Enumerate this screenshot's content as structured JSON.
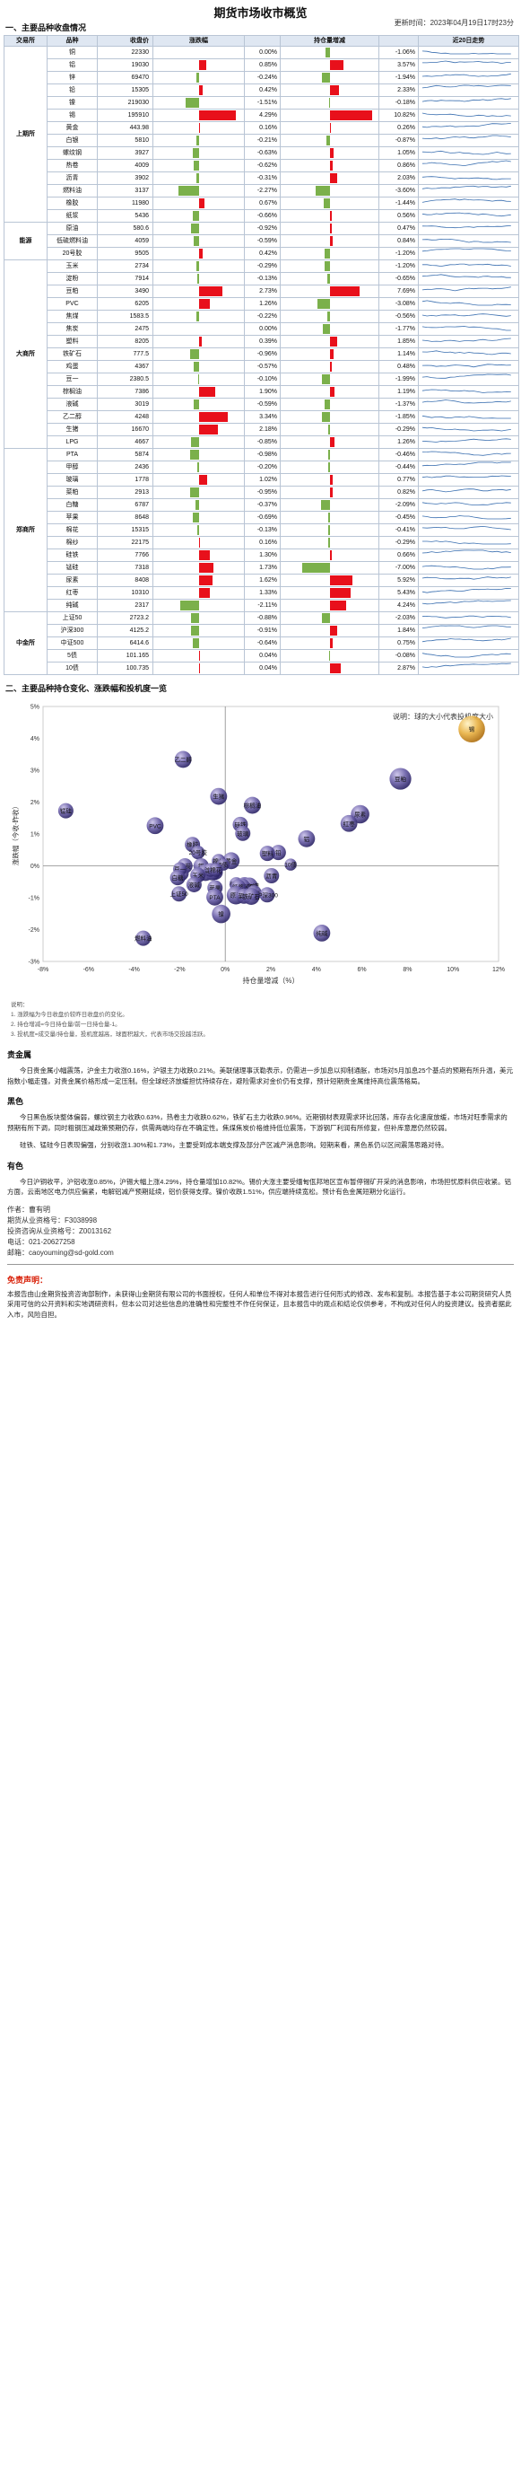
{
  "title": "期货市场收市概览",
  "update_time": "更新时间：2023年04月19日17时23分",
  "section1_title": "一、主要品种收盘情况",
  "table": {
    "headers": [
      "交易所",
      "品种",
      "收盘价",
      "涨跌幅",
      "",
      "持仓量增减",
      "",
      "近20日走势"
    ],
    "groups": [
      {
        "exchange": "上期所",
        "rows": [
          {
            "name": "铜",
            "price": "22330",
            "pct": 0.0,
            "pct_text": "0.00%",
            "oi": -1.06,
            "oi_text": "-1.06%"
          },
          {
            "name": "铝",
            "price": "19030",
            "pct": 0.85,
            "pct_text": "0.85%",
            "oi": 3.57,
            "oi_text": "3.57%"
          },
          {
            "name": "锌",
            "price": "69470",
            "pct": -0.24,
            "pct_text": "-0.24%",
            "oi": -1.94,
            "oi_text": "-1.94%"
          },
          {
            "name": "铅",
            "price": "15305",
            "pct": 0.42,
            "pct_text": "0.42%",
            "oi": 2.33,
            "oi_text": "2.33%"
          },
          {
            "name": "镍",
            "price": "219030",
            "pct": -1.51,
            "pct_text": "-1.51%",
            "oi": -0.18,
            "oi_text": "-0.18%"
          },
          {
            "name": "锡",
            "price": "195910",
            "pct": 4.29,
            "pct_text": "4.29%",
            "oi": 10.82,
            "oi_text": "10.82%"
          },
          {
            "name": "黄金",
            "price": "443.98",
            "pct": 0.16,
            "pct_text": "0.16%",
            "oi": 0.26,
            "oi_text": "0.26%"
          },
          {
            "name": "白银",
            "price": "5810",
            "pct": -0.21,
            "pct_text": "-0.21%",
            "oi": -0.87,
            "oi_text": "-0.87%"
          },
          {
            "name": "螺纹钢",
            "price": "3927",
            "pct": -0.63,
            "pct_text": "-0.63%",
            "oi": 1.05,
            "oi_text": "1.05%"
          },
          {
            "name": "热卷",
            "price": "4009",
            "pct": -0.62,
            "pct_text": "-0.62%",
            "oi": 0.86,
            "oi_text": "0.86%"
          },
          {
            "name": "沥青",
            "price": "3902",
            "pct": -0.31,
            "pct_text": "-0.31%",
            "oi": 2.03,
            "oi_text": "2.03%"
          },
          {
            "name": "燃料油",
            "price": "3137",
            "pct": -2.27,
            "pct_text": "-2.27%",
            "oi": -3.6,
            "oi_text": "-3.60%"
          },
          {
            "name": "橡胶",
            "price": "11980",
            "pct": 0.67,
            "pct_text": "0.67%",
            "oi": -1.44,
            "oi_text": "-1.44%"
          },
          {
            "name": "纸浆",
            "price": "5436",
            "pct": -0.66,
            "pct_text": "-0.66%",
            "oi": 0.56,
            "oi_text": "0.56%"
          }
        ]
      },
      {
        "exchange": "能源",
        "rows": [
          {
            "name": "原油",
            "price": "580.6",
            "pct": -0.92,
            "pct_text": "-0.92%",
            "oi": 0.47,
            "oi_text": "0.47%"
          },
          {
            "name": "低硫燃料油",
            "price": "4059",
            "pct": -0.59,
            "pct_text": "-0.59%",
            "oi": 0.84,
            "oi_text": "0.84%"
          },
          {
            "name": "20号胶",
            "price": "9505",
            "pct": 0.42,
            "pct_text": "0.42%",
            "oi": -1.2,
            "oi_text": "-1.20%"
          }
        ]
      },
      {
        "exchange": "大商所",
        "rows": [
          {
            "name": "玉米",
            "price": "2734",
            "pct": -0.29,
            "pct_text": "-0.29%",
            "oi": -1.2,
            "oi_text": "-1.20%"
          },
          {
            "name": "淀粉",
            "price": "7914",
            "pct": -0.13,
            "pct_text": "-0.13%",
            "oi": -0.65,
            "oi_text": "-0.65%"
          },
          {
            "name": "豆粕",
            "price": "3490",
            "pct": 2.73,
            "pct_text": "2.73%",
            "oi": 7.69,
            "oi_text": "7.69%"
          },
          {
            "name": "PVC",
            "price": "6205",
            "pct": 1.26,
            "pct_text": "1.26%",
            "oi": -3.08,
            "oi_text": "-3.08%"
          },
          {
            "name": "焦煤",
            "price": "1583.5",
            "pct": -0.22,
            "pct_text": "-0.22%",
            "oi": -0.56,
            "oi_text": "-0.56%"
          },
          {
            "name": "焦炭",
            "price": "2475",
            "pct": 0.0,
            "pct_text": "0.00%",
            "oi": -1.77,
            "oi_text": "-1.77%"
          },
          {
            "name": "塑料",
            "price": "8205",
            "pct": 0.39,
            "pct_text": "0.39%",
            "oi": 1.85,
            "oi_text": "1.85%"
          },
          {
            "name": "铁矿石",
            "price": "777.5",
            "pct": -0.96,
            "pct_text": "-0.96%",
            "oi": 1.14,
            "oi_text": "1.14%"
          },
          {
            "name": "鸡蛋",
            "price": "4367",
            "pct": -0.57,
            "pct_text": "-0.57%",
            "oi": 0.48,
            "oi_text": "0.48%"
          },
          {
            "name": "豆一",
            "price": "2380.5",
            "pct": -0.1,
            "pct_text": "-0.10%",
            "oi": -1.99,
            "oi_text": "-1.99%"
          },
          {
            "name": "棕榈油",
            "price": "7386",
            "pct": 1.9,
            "pct_text": "1.90%",
            "oi": 1.19,
            "oi_text": "1.19%"
          },
          {
            "name": "液碱",
            "price": "3019",
            "pct": -0.59,
            "pct_text": "-0.59%",
            "oi": -1.37,
            "oi_text": "-1.37%"
          },
          {
            "name": "乙二醇",
            "price": "4248",
            "pct": 3.34,
            "pct_text": "3.34%",
            "oi": -1.85,
            "oi_text": "-1.85%"
          },
          {
            "name": "生猪",
            "price": "16670",
            "pct": 2.18,
            "pct_text": "2.18%",
            "oi": -0.29,
            "oi_text": "-0.29%"
          },
          {
            "name": "LPG",
            "price": "4667",
            "pct": -0.85,
            "pct_text": "-0.85%",
            "oi": 1.26,
            "oi_text": "1.26%"
          }
        ]
      },
      {
        "exchange": "郑商所",
        "rows": [
          {
            "name": "PTA",
            "price": "5874",
            "pct": -0.98,
            "pct_text": "-0.98%",
            "oi": -0.46,
            "oi_text": "-0.46%"
          },
          {
            "name": "甲醇",
            "price": "2436",
            "pct": -0.2,
            "pct_text": "-0.20%",
            "oi": -0.44,
            "oi_text": "-0.44%"
          },
          {
            "name": "玻璃",
            "price": "1778",
            "pct": 1.02,
            "pct_text": "1.02%",
            "oi": 0.77,
            "oi_text": "0.77%"
          },
          {
            "name": "菜粕",
            "price": "2913",
            "pct": -0.95,
            "pct_text": "-0.95%",
            "oi": 0.82,
            "oi_text": "0.82%"
          },
          {
            "name": "白糖",
            "price": "6787",
            "pct": -0.37,
            "pct_text": "-0.37%",
            "oi": -2.09,
            "oi_text": "-2.09%"
          },
          {
            "name": "苹果",
            "price": "8648",
            "pct": -0.69,
            "pct_text": "-0.69%",
            "oi": -0.45,
            "oi_text": "-0.45%"
          },
          {
            "name": "棉花",
            "price": "15315",
            "pct": -0.13,
            "pct_text": "-0.13%",
            "oi": -0.41,
            "oi_text": "-0.41%"
          },
          {
            "name": "棉纱",
            "price": "22175",
            "pct": 0.16,
            "pct_text": "0.16%",
            "oi": -0.29,
            "oi_text": "-0.29%"
          },
          {
            "name": "硅铁",
            "price": "7766",
            "pct": 1.3,
            "pct_text": "1.30%",
            "oi": 0.66,
            "oi_text": "0.66%"
          },
          {
            "name": "锰硅",
            "price": "7318",
            "pct": 1.73,
            "pct_text": "1.73%",
            "oi": -7.0,
            "oi_text": "-7.00%"
          },
          {
            "name": "尿素",
            "price": "8408",
            "pct": 1.62,
            "pct_text": "1.62%",
            "oi": 5.92,
            "oi_text": "5.92%"
          },
          {
            "name": "红枣",
            "price": "10310",
            "pct": 1.33,
            "pct_text": "1.33%",
            "oi": 5.43,
            "oi_text": "5.43%"
          },
          {
            "name": "纯碱",
            "price": "2317",
            "pct": -2.11,
            "pct_text": "-2.11%",
            "oi": 4.24,
            "oi_text": "4.24%"
          }
        ]
      },
      {
        "exchange": "中金所",
        "rows": [
          {
            "name": "上证50",
            "price": "2723.2",
            "pct": -0.88,
            "pct_text": "-0.88%",
            "oi": -2.03,
            "oi_text": "-2.03%"
          },
          {
            "name": "沪深300",
            "price": "4125.2",
            "pct": -0.91,
            "pct_text": "-0.91%",
            "oi": 1.84,
            "oi_text": "1.84%"
          },
          {
            "name": "中证500",
            "price": "6414.6",
            "pct": -0.64,
            "pct_text": "-0.64%",
            "oi": 0.75,
            "oi_text": "0.75%"
          },
          {
            "name": "5债",
            "price": "101.165",
            "pct": 0.04,
            "pct_text": "0.04%",
            "oi": -0.08,
            "oi_text": "-0.08%"
          },
          {
            "name": "10债",
            "price": "100.735",
            "pct": 0.04,
            "pct_text": "0.04%",
            "oi": 2.87,
            "oi_text": "2.87%"
          }
        ]
      }
    ]
  },
  "section2_title": "二、主要品种持仓变化、涨跌幅和投机度一览",
  "chart_data": {
    "type": "scatter",
    "legend_note": "说明：球的大小代表投机度大小",
    "xlabel": "持仓量增减（%）",
    "ylabel": "涨跌幅（今收-昨收）",
    "xlim": [
      -8,
      12
    ],
    "ylim": [
      -3,
      5
    ],
    "x_ticks": [
      "-8%",
      "-6%",
      "-4%",
      "-2%",
      "0%",
      "2%",
      "4%",
      "6%",
      "8%",
      "10%",
      "12%"
    ],
    "y_ticks": [
      "5%",
      "4%",
      "3%",
      "2%",
      "1%",
      "0%",
      "-1%",
      "-2%",
      "-3%"
    ],
    "points": [
      {
        "label": "锡",
        "x": 10.82,
        "y": 4.29,
        "size": 1.2
      },
      {
        "label": "豆粕",
        "x": 7.69,
        "y": 2.73,
        "size": 0.9
      },
      {
        "label": "乙二醇",
        "x": -1.85,
        "y": 3.34,
        "size": 0.6
      },
      {
        "label": "生猪",
        "x": -0.29,
        "y": 2.18,
        "size": 0.6
      },
      {
        "label": "锰硅",
        "x": -7.0,
        "y": 1.73,
        "size": 0.5
      },
      {
        "label": "尿素",
        "x": 5.92,
        "y": 1.62,
        "size": 0.7
      },
      {
        "label": "红枣",
        "x": 5.43,
        "y": 1.33,
        "size": 0.6
      },
      {
        "label": "棕榈油",
        "x": 1.19,
        "y": 1.9,
        "size": 0.6
      },
      {
        "label": "PVC",
        "x": -3.08,
        "y": 1.26,
        "size": 0.6
      },
      {
        "label": "硅铁",
        "x": 0.66,
        "y": 1.3,
        "size": 0.5
      },
      {
        "label": "玻璃",
        "x": 0.77,
        "y": 1.02,
        "size": 0.5
      },
      {
        "label": "铝",
        "x": 3.57,
        "y": 0.85,
        "size": 0.6
      },
      {
        "label": "铅",
        "x": 2.33,
        "y": 0.42,
        "size": 0.5
      },
      {
        "label": "橡胶",
        "x": -1.44,
        "y": 0.67,
        "size": 0.5
      },
      {
        "label": "塑料",
        "x": 1.85,
        "y": 0.39,
        "size": 0.5
      },
      {
        "label": "20号胶",
        "x": -1.2,
        "y": 0.42,
        "size": 0.4
      },
      {
        "label": "铜",
        "x": -1.06,
        "y": 0.0,
        "size": 0.5
      },
      {
        "label": "焦炭",
        "x": -1.77,
        "y": 0.0,
        "size": 0.5
      },
      {
        "label": "黄金",
        "x": 0.26,
        "y": 0.16,
        "size": 0.6
      },
      {
        "label": "棉纱",
        "x": -0.29,
        "y": 0.16,
        "size": 0.4
      },
      {
        "label": "10债",
        "x": 2.87,
        "y": 0.04,
        "size": 0.3
      },
      {
        "label": "5债",
        "x": -0.08,
        "y": 0.04,
        "size": 0.3
      },
      {
        "label": "白银",
        "x": -0.87,
        "y": -0.21,
        "size": 0.6
      },
      {
        "label": "锌",
        "x": -1.94,
        "y": -0.24,
        "size": 0.5
      },
      {
        "label": "甲醇",
        "x": -0.44,
        "y": -0.2,
        "size": 0.5
      },
      {
        "label": "焦煤",
        "x": -0.56,
        "y": -0.22,
        "size": 0.5
      },
      {
        "label": "玉米",
        "x": -1.2,
        "y": -0.29,
        "size": 0.5
      },
      {
        "label": "淀粉",
        "x": -0.65,
        "y": -0.13,
        "size": 0.4
      },
      {
        "label": "豆一",
        "x": -1.99,
        "y": -0.1,
        "size": 0.4
      },
      {
        "label": "棉花",
        "x": -0.41,
        "y": -0.13,
        "size": 0.4
      },
      {
        "label": "白糖",
        "x": -2.09,
        "y": -0.37,
        "size": 0.5
      },
      {
        "label": "沥青",
        "x": 2.03,
        "y": -0.31,
        "size": 0.5
      },
      {
        "label": "鸡蛋",
        "x": 0.48,
        "y": -0.57,
        "size": 0.4
      },
      {
        "label": "液碱",
        "x": -1.37,
        "y": -0.59,
        "size": 0.5
      },
      {
        "label": "低硫燃料油",
        "x": 0.84,
        "y": -0.59,
        "size": 0.5
      },
      {
        "label": "热卷",
        "x": 0.86,
        "y": -0.62,
        "size": 0.5
      },
      {
        "label": "螺纹钢",
        "x": 1.05,
        "y": -0.63,
        "size": 0.6
      },
      {
        "label": "中证500",
        "x": 0.75,
        "y": -0.64,
        "size": 0.5
      },
      {
        "label": "纸浆",
        "x": 0.56,
        "y": -0.66,
        "size": 0.5
      },
      {
        "label": "苹果",
        "x": -0.45,
        "y": -0.69,
        "size": 0.5
      },
      {
        "label": "LPG",
        "x": 1.26,
        "y": -0.85,
        "size": 0.5
      },
      {
        "label": "上证50",
        "x": -2.03,
        "y": -0.88,
        "size": 0.5
      },
      {
        "label": "沪深300",
        "x": 1.84,
        "y": -0.91,
        "size": 0.5
      },
      {
        "label": "原油",
        "x": 0.47,
        "y": -0.92,
        "size": 0.7
      },
      {
        "label": "菜粕",
        "x": 0.82,
        "y": -0.95,
        "size": 0.5
      },
      {
        "label": "铁矿石",
        "x": 1.14,
        "y": -0.96,
        "size": 0.6
      },
      {
        "label": "PTA",
        "x": -0.46,
        "y": -0.98,
        "size": 0.6
      },
      {
        "label": "镍",
        "x": -0.18,
        "y": -1.51,
        "size": 0.7
      },
      {
        "label": "纯碱",
        "x": 4.24,
        "y": -2.11,
        "size": 0.6
      },
      {
        "label": "燃料油",
        "x": -3.6,
        "y": -2.27,
        "size": 0.5
      }
    ]
  },
  "notes_label": "说明：",
  "notes": [
    "1. 涨跌幅为今日收盘价较昨日收盘价的变化。",
    "2. 持仓增减=今日持仓量/前一日持仓量-1。",
    "3. 投机度=成交量/持仓量，投机度越高，球面积越大，代表市场交投越活跃。"
  ],
  "sections": [
    {
      "title": "贵金属",
      "paragraphs": [
        "今日贵金属小幅震荡，沪金主力收涨0.16%，沪银主力收跌0.21%。美联储理事沃勒表示，仍需进一步加息以抑制通胀，市场对5月加息25个基点的预期有所升温，美元指数小幅走强，对贵金属价格形成一定压制。但全球经济放缓担忧持续存在，避险需求对金价仍有支撑，预计短期贵金属维持高位震荡格局。"
      ]
    },
    {
      "title": "黑色",
      "paragraphs": [
        "今日黑色板块整体偏弱，螺纹钢主力收跌0.63%，热卷主力收跌0.62%，铁矿石主力收跌0.96%。近期钢材表观需求环比回落，库存去化速度放缓，市场对旺季需求的预期有所下调，同时粗钢压减政策预期仍存，供需两端均存在不确定性。焦煤焦炭价格维持低位震荡，下游钢厂利润有所修复，但补库意愿仍然较弱。",
        "硅铁、锰硅今日表现偏强，分别收涨1.30%和1.73%，主要受到成本端支撑及部分产区减产消息影响。短期来看，黑色系仍以区间震荡思路对待。"
      ]
    },
    {
      "title": "有色",
      "paragraphs": [
        "今日沪铜收平，沪铝收涨0.85%，沪锡大幅上涨4.29%，持仓量增加10.82%。锡价大涨主要受缅甸佤邦地区宣布暂停锡矿开采的消息影响，市场担忧原料供应收紧。铝方面，云南地区电力供应偏紧，电解铝减产预期延续，铝价获得支撑。镍价收跌1.51%，供应端持续宽松。预计有色金属短期分化运行。"
      ]
    }
  ],
  "author": {
    "name_label": "作者：",
    "name": "曹有明",
    "license1_label": "期货从业资格号：",
    "license1": "F3038998",
    "license2_label": "投资咨询从业资格号：",
    "license2": "Z0013162",
    "tel_label": "电话：",
    "tel": "021-20627258",
    "email_label": "邮箱：",
    "email": "caoyouming@sd-gold.com"
  },
  "disclaimer_title": "免责声明：",
  "disclaimer": "本报告由山金期货投资咨询部制作，未获得山金期货有限公司的书面授权，任何人和单位不得对本报告进行任何形式的修改、发布和复制。本报告基于本公司期货研究人员采用可信的公开资料和实地调研资料，但本公司对这些信息的准确性和完整性不作任何保证，且本报告中的观点和结论仅供参考，不构成对任何人的投资建议。投资者据此入市，风险自担。"
}
